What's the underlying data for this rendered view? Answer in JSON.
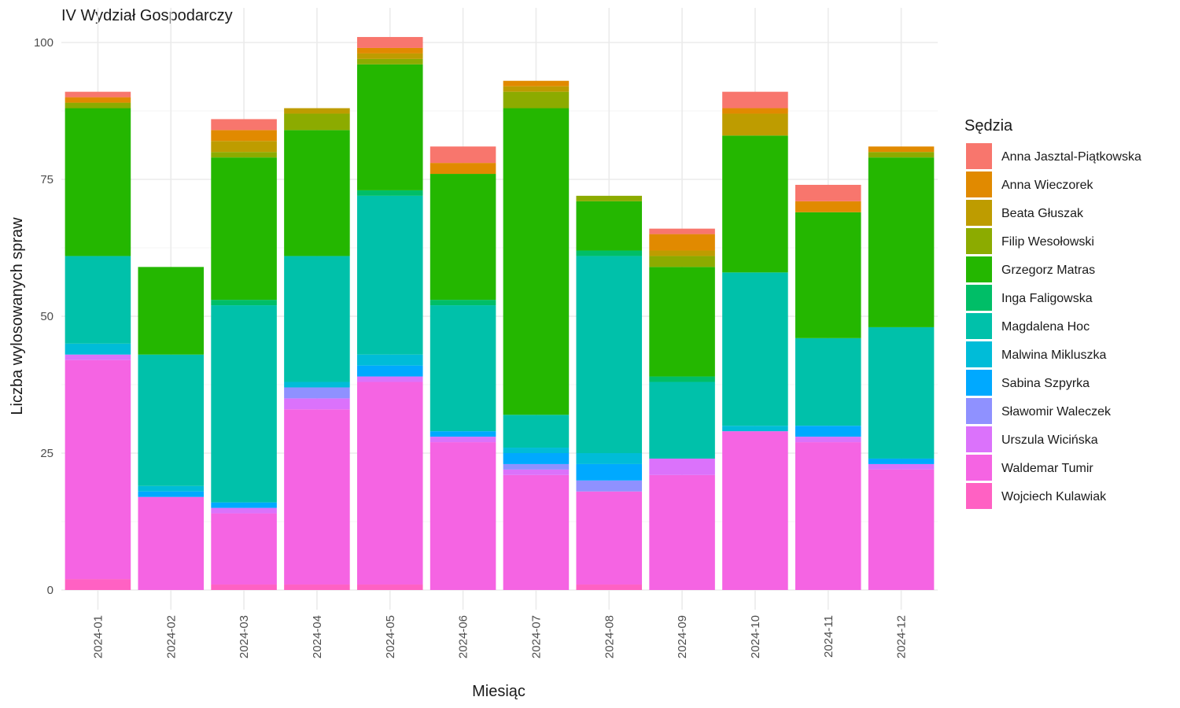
{
  "chart_data": {
    "type": "bar",
    "stacked": true,
    "title": "IV Wydział Gospodarczy",
    "xlabel": "Miesiąc",
    "ylabel": "Liczba wylosowanych spraw",
    "ylim": [
      0,
      105
    ],
    "yticks": [
      0,
      25,
      50,
      75,
      100
    ],
    "grid": true,
    "legend_title": "Sędzia",
    "legend_position": "right",
    "categories": [
      "2024-01",
      "2024-02",
      "2024-03",
      "2024-04",
      "2024-05",
      "2024-06",
      "2024-07",
      "2024-08",
      "2024-09",
      "2024-10",
      "2024-11",
      "2024-12"
    ],
    "series": [
      {
        "name": "Wojciech Kulawiak",
        "color": "#FF61C3",
        "values": [
          2,
          0,
          1,
          1,
          1,
          0,
          0,
          1,
          0,
          0,
          0,
          0
        ]
      },
      {
        "name": "Waldemar Tumir",
        "color": "#F564E3",
        "values": [
          40,
          17,
          13,
          32,
          37,
          27,
          21,
          17,
          21,
          29,
          27,
          22
        ]
      },
      {
        "name": "Urszula Wicińska",
        "color": "#DB72FB",
        "values": [
          1,
          0,
          1,
          2,
          1,
          1,
          1,
          0,
          3,
          0,
          1,
          1
        ]
      },
      {
        "name": "Sławomir Waleczek",
        "color": "#8F91FF",
        "values": [
          0,
          0,
          0,
          2,
          0,
          0,
          1,
          2,
          0,
          0,
          0,
          0
        ]
      },
      {
        "name": "Sabina Szpyrka",
        "color": "#00A9FF",
        "values": [
          0,
          1,
          1,
          0,
          2,
          1,
          2,
          3,
          0,
          0,
          2,
          1
        ]
      },
      {
        "name": "Malwina Mikluszka",
        "color": "#00BCD8",
        "values": [
          2,
          1,
          0,
          1,
          2,
          0,
          1,
          2,
          0,
          1,
          0,
          0
        ]
      },
      {
        "name": "Magdalena Hoc",
        "color": "#00C1AA",
        "values": [
          16,
          24,
          36,
          23,
          29,
          23,
          6,
          36,
          14,
          28,
          16,
          24
        ]
      },
      {
        "name": "Inga Faligowska",
        "color": "#00BE67",
        "values": [
          0,
          0,
          1,
          0,
          1,
          1,
          0,
          1,
          1,
          0,
          0,
          0
        ]
      },
      {
        "name": "Grzegorz Matras",
        "color": "#24B700",
        "values": [
          27,
          16,
          26,
          23,
          23,
          23,
          56,
          9,
          20,
          25,
          23,
          31
        ]
      },
      {
        "name": "Filip Wesołowski",
        "color": "#8CAB00",
        "values": [
          1,
          0,
          1,
          3,
          1,
          0,
          3,
          1,
          2,
          0,
          0,
          1
        ]
      },
      {
        "name": "Beata Głuszak",
        "color": "#BE9C00",
        "values": [
          0,
          0,
          2,
          1,
          1,
          0,
          1,
          0,
          1,
          4,
          0,
          0
        ]
      },
      {
        "name": "Anna Wieczorek",
        "color": "#E18A00",
        "values": [
          1,
          0,
          2,
          0,
          1,
          2,
          1,
          0,
          3,
          1,
          2,
          1
        ]
      },
      {
        "name": "Anna Jasztal-Piątkowska",
        "color": "#F8766D",
        "values": [
          1,
          0,
          2,
          0,
          2,
          3,
          0,
          0,
          1,
          3,
          3,
          0
        ]
      }
    ]
  }
}
